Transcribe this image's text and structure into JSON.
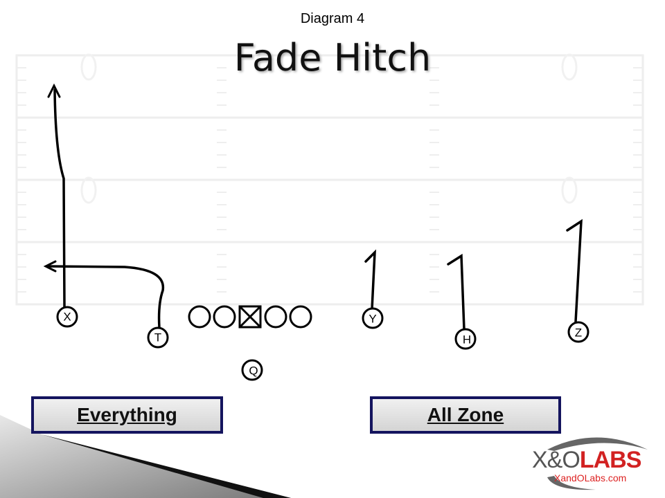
{
  "slide": {
    "subtitle": "Diagram 4",
    "title": "Fade Hitch"
  },
  "players": {
    "x": "X",
    "t": "T",
    "q": "Q",
    "y": "Y",
    "h": "H",
    "z": "Z"
  },
  "callouts": {
    "left": "Everything",
    "right": "All Zone"
  },
  "logo": {
    "brand_xo": "X&O",
    "brand_labs": "LABS",
    "url": "XandOLabs.com"
  },
  "colors": {
    "callout_border": "#14145e",
    "logo_red": "#d22222",
    "logo_gray": "#555555"
  }
}
